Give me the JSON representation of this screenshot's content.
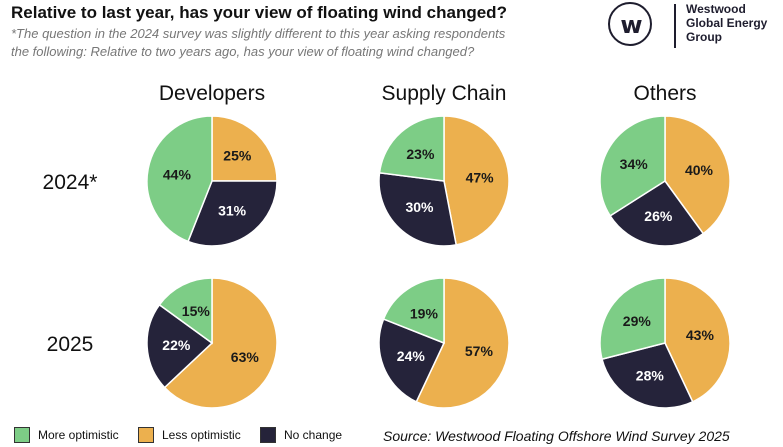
{
  "header": {
    "title": "Relative to last year, has your view of floating wind changed?",
    "note_line1": "*The question in the 2024 survey was slightly different to this year asking respondents",
    "note_line2": "the following: Relative to two years ago, has your view of floating wind changed?"
  },
  "logo": {
    "glyph": "w",
    "line1": "Westwood",
    "line2": "Global Energy",
    "line3": "Group"
  },
  "colors": {
    "more_optimistic": "#7dcd86",
    "less_optimistic": "#ecb04e",
    "no_change": "#25233a"
  },
  "chart_data": {
    "type": "pie",
    "columns": [
      "Developers",
      "Supply Chain",
      "Others"
    ],
    "rows": [
      "2024*",
      "2025"
    ],
    "legend": [
      "More optimistic",
      "Less optimistic",
      "No change"
    ],
    "pies": [
      {
        "row": "2024*",
        "column": "Developers",
        "values": {
          "Less optimistic": 25,
          "No change": 31,
          "More optimistic": 44
        }
      },
      {
        "row": "2024*",
        "column": "Supply Chain",
        "values": {
          "Less optimistic": 47,
          "No change": 30,
          "More optimistic": 23
        }
      },
      {
        "row": "2024*",
        "column": "Others",
        "values": {
          "Less optimistic": 40,
          "No change": 26,
          "More optimistic": 34
        }
      },
      {
        "row": "2025",
        "column": "Developers",
        "values": {
          "Less optimistic": 63,
          "No change": 22,
          "More optimistic": 15
        }
      },
      {
        "row": "2025",
        "column": "Supply Chain",
        "values": {
          "Less optimistic": 57,
          "No change": 24,
          "More optimistic": 19
        }
      },
      {
        "row": "2025",
        "column": "Others",
        "values": {
          "Less optimistic": 43,
          "No change": 28,
          "More optimistic": 29
        }
      }
    ]
  },
  "source": "Source: Westwood Floating Offshore Wind Survey 2025"
}
